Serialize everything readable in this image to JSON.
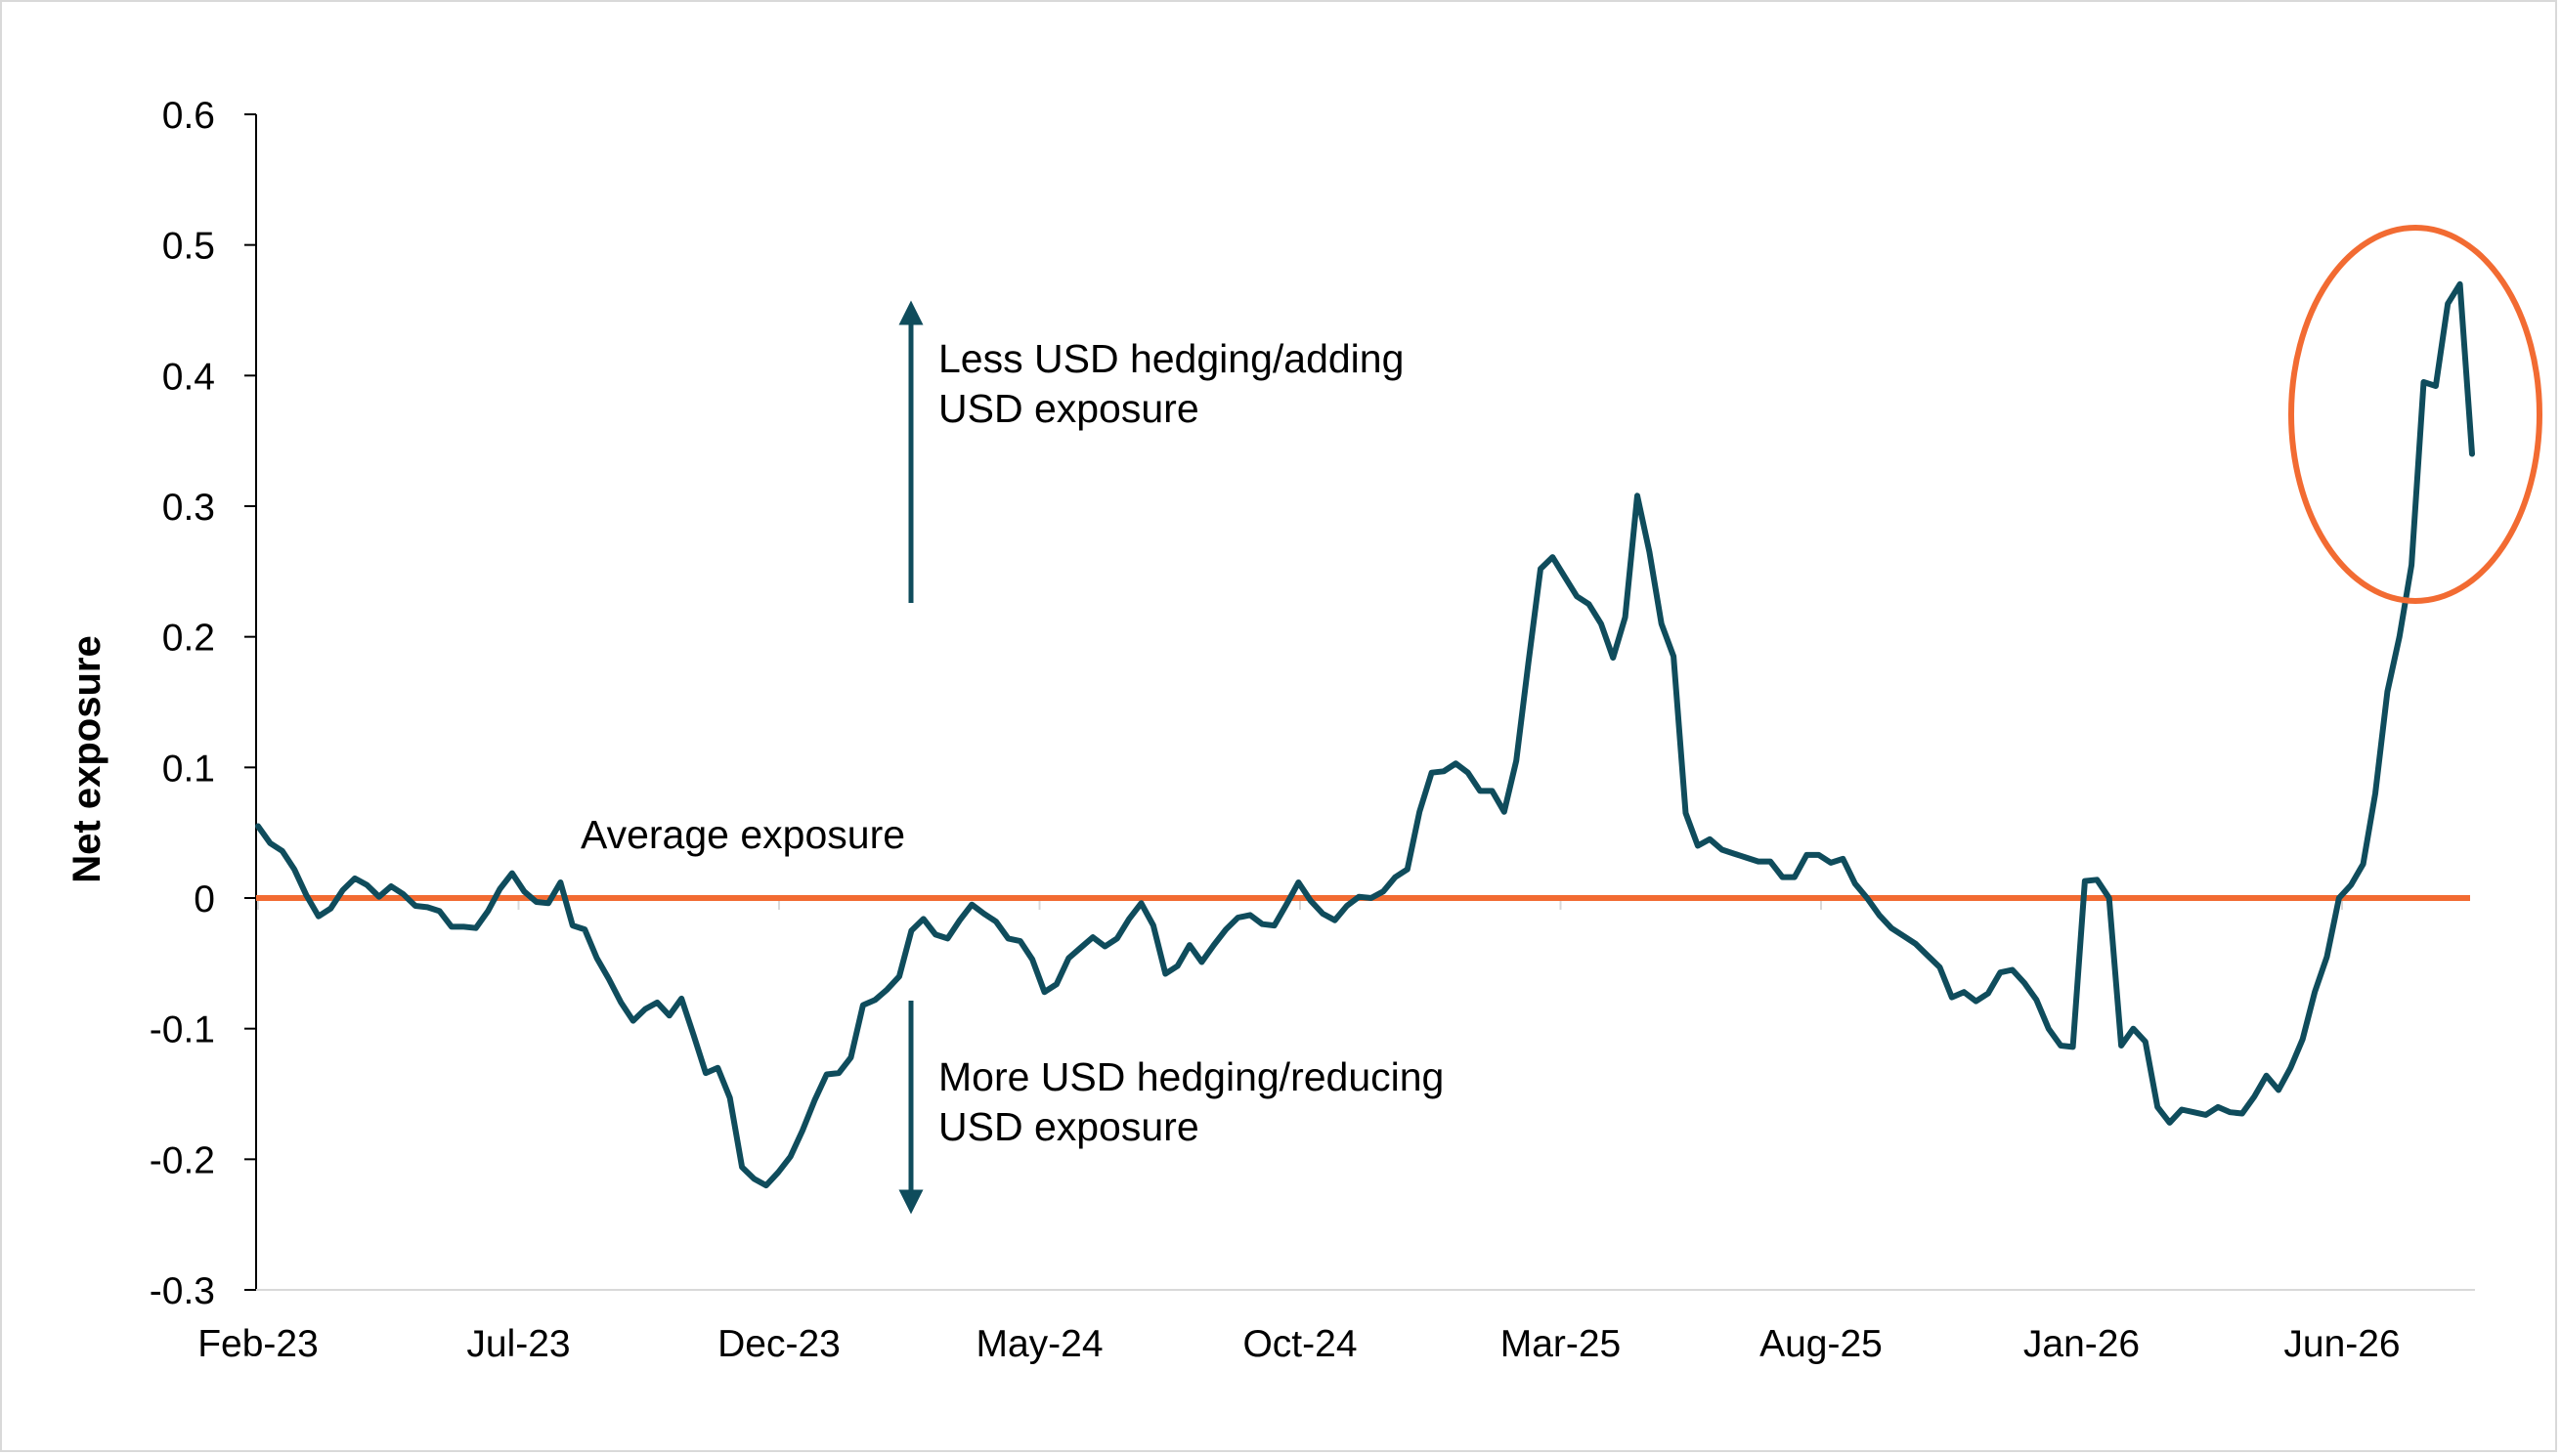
{
  "chart_data": {
    "type": "line",
    "ylabel": "Net exposure",
    "ylim": [
      -0.3,
      0.6
    ],
    "yticks": [
      0.6,
      0.5,
      0.4,
      0.3,
      0.2,
      0.1,
      0,
      -0.1,
      -0.2,
      -0.3
    ],
    "ytick_labels": [
      "0.6",
      "0.5",
      "0.4",
      "0.3",
      "0.2",
      "0.1",
      "0",
      "-0.1",
      "-0.2",
      "-0.3"
    ],
    "x_tick_labels": [
      "Feb-23",
      "Jul-23",
      "Dec-23",
      "May-24",
      "Oct-24",
      "Mar-25",
      "Aug-25",
      "Jan-26",
      "Jun-26"
    ],
    "grid": false,
    "series": [
      {
        "color": "#0f4c5c",
        "values": [
          0.055,
          0.042,
          0.036,
          0.022,
          0.002,
          -0.014,
          -0.008,
          0.006,
          0.015,
          0.01,
          0.001,
          0.009,
          0.003,
          -0.006,
          -0.007,
          -0.01,
          -0.022,
          -0.022,
          -0.023,
          -0.01,
          0.007,
          0.019,
          0.005,
          -0.003,
          -0.004,
          0.012,
          -0.021,
          -0.024,
          -0.046,
          -0.062,
          -0.08,
          -0.094,
          -0.085,
          -0.08,
          -0.09,
          -0.077,
          -0.105,
          -0.134,
          -0.13,
          -0.153,
          -0.206,
          -0.215,
          -0.22,
          -0.21,
          -0.198,
          -0.178,
          -0.155,
          -0.135,
          -0.134,
          -0.122,
          -0.082,
          -0.078,
          -0.07,
          -0.06,
          -0.025,
          -0.016,
          -0.028,
          -0.031,
          -0.017,
          -0.005,
          -0.012,
          -0.018,
          -0.031,
          -0.033,
          -0.047,
          -0.072,
          -0.066,
          -0.046,
          -0.038,
          -0.03,
          -0.037,
          -0.031,
          -0.016,
          -0.004,
          -0.021,
          -0.058,
          -0.052,
          -0.036,
          -0.049,
          -0.036,
          -0.024,
          -0.015,
          -0.013,
          -0.02,
          -0.021,
          -0.005,
          0.012,
          -0.002,
          -0.012,
          -0.017,
          -0.006,
          0.001,
          0.0,
          0.005,
          0.016,
          0.022,
          0.066,
          0.096,
          0.097,
          0.103,
          0.096,
          0.082,
          0.082,
          0.066,
          0.105,
          0.18,
          0.252,
          0.261,
          0.246,
          0.231,
          0.225,
          0.21,
          0.184,
          0.215,
          0.308,
          0.265,
          0.21,
          0.185,
          0.065,
          0.04,
          0.045,
          0.037,
          0.034,
          0.031,
          0.028,
          0.028,
          0.016,
          0.016,
          0.033,
          0.033,
          0.027,
          0.03,
          0.011,
          0.0,
          -0.013,
          -0.023,
          -0.029,
          -0.035,
          -0.044,
          -0.053,
          -0.076,
          -0.072,
          -0.079,
          -0.073,
          -0.057,
          -0.055,
          -0.065,
          -0.078,
          -0.1,
          -0.113,
          -0.114,
          0.013,
          0.014,
          0.0,
          -0.113,
          -0.1,
          -0.11,
          -0.16,
          -0.172,
          -0.162,
          -0.164,
          -0.166,
          -0.16,
          -0.164,
          -0.165,
          -0.152,
          -0.136,
          -0.147,
          -0.13,
          -0.108,
          -0.072,
          -0.045,
          0.0,
          0.01,
          0.026,
          0.08,
          0.158,
          0.2,
          0.255,
          0.395,
          0.392,
          0.455,
          0.47,
          0.34
        ]
      }
    ],
    "reference_line": {
      "value": 0,
      "label": "Average exposure",
      "color": "#f26b32"
    },
    "annotations": [
      {
        "text_line1": "Less USD hedging/adding",
        "text_line2": "USD exposure",
        "arrow": "up"
      },
      {
        "text_line1": "More USD hedging/reducing",
        "text_line2": "USD exposure",
        "arrow": "down"
      }
    ],
    "highlight": {
      "shape": "ellipse",
      "color": "#f26b32",
      "target": "recent peak"
    },
    "arrow_color": "#0f4c5c"
  }
}
